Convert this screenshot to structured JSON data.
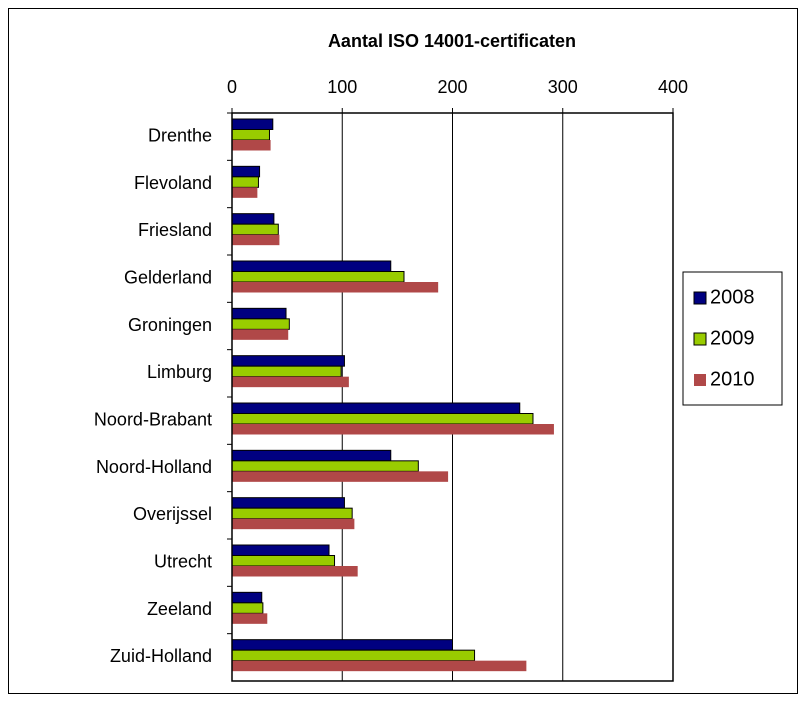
{
  "chart_data": {
    "type": "hbar",
    "title": "Aantal ISO 14001-certificaten",
    "categories": [
      "Drenthe",
      "Flevoland",
      "Friesland",
      "Gelderland",
      "Groningen",
      "Limburg",
      "Noord-Brabant",
      "Noord-Holland",
      "Overijssel",
      "Utrecht",
      "Zeeland",
      "Zuid-Holland"
    ],
    "series": [
      {
        "name": "2008",
        "color": "#000080",
        "values": [
          37,
          25,
          38,
          144,
          49,
          102,
          261,
          144,
          102,
          88,
          27,
          200
        ]
      },
      {
        "name": "2009",
        "color": "#99cc00",
        "values": [
          34,
          24,
          42,
          156,
          52,
          99,
          273,
          169,
          109,
          93,
          28,
          220
        ]
      },
      {
        "name": "2010",
        "color": "#b04848",
        "values": [
          35,
          23,
          43,
          187,
          51,
          106,
          292,
          196,
          111,
          114,
          32,
          267
        ]
      }
    ],
    "xlim": [
      0,
      400
    ],
    "xticks": [
      0,
      100,
      200,
      300,
      400
    ],
    "grid": true,
    "legend": "right"
  }
}
